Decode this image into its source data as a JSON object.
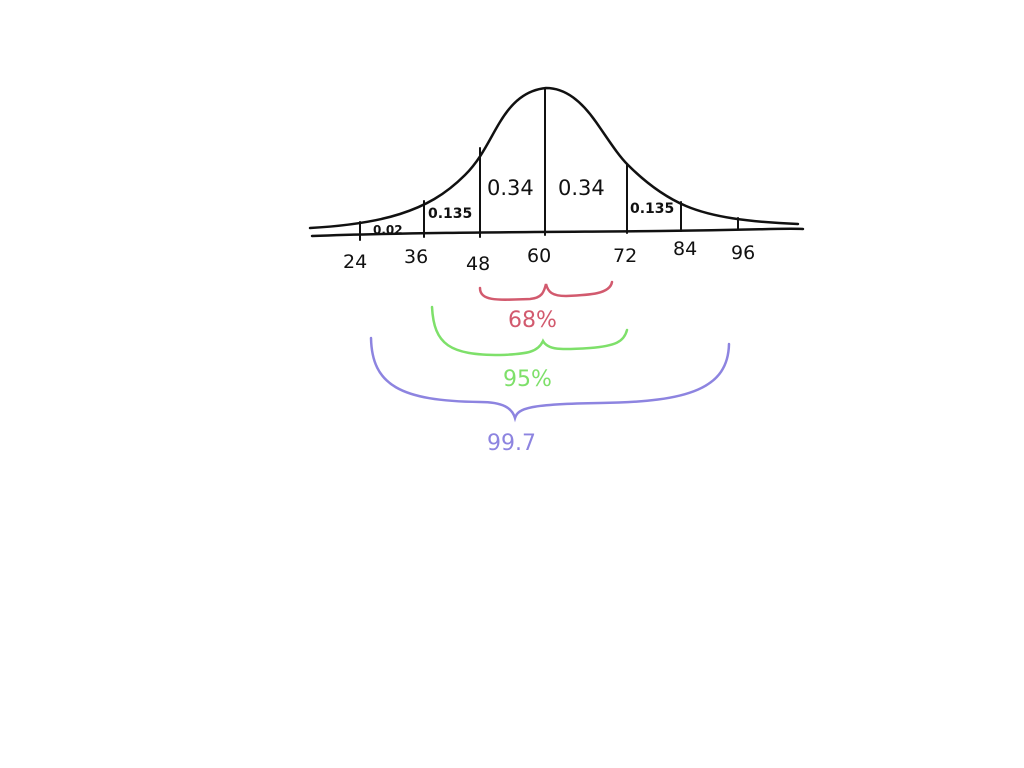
{
  "axis": {
    "ticks": [
      "24",
      "36",
      "48",
      "60",
      "72",
      "84",
      "96"
    ]
  },
  "areas": {
    "left_tail": "0.02",
    "left_mid": "0.135",
    "left_center": "0.34",
    "right_center": "0.34",
    "right_mid": "0.135"
  },
  "brackets": {
    "inner": {
      "label": "68%",
      "color": "#d25a6e"
    },
    "middle": {
      "label": "95%",
      "color": "#7ee06a"
    },
    "outer": {
      "label": "99.7",
      "color": "#8d84e0"
    }
  }
}
